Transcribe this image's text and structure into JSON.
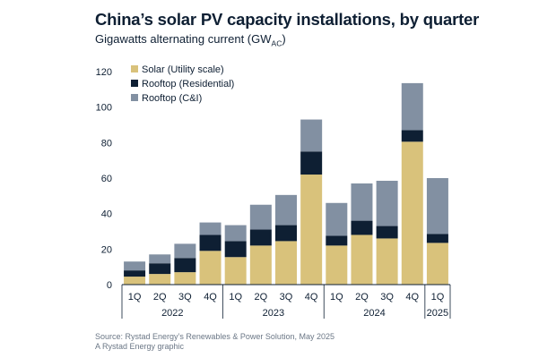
{
  "header": {
    "title": "China’s solar PV capacity installations, by quarter",
    "subtitle_main": "Gigawatts alternating current (GW",
    "subtitle_sub": "AC",
    "subtitle_end": ")"
  },
  "footer": {
    "source": "Source: Rystad Energy’s Renewables & Power Solution, May 2025",
    "credit": "A Rystad Energy graphic"
  },
  "chart_data": {
    "type": "bar",
    "stacked": true,
    "title": "China’s solar PV capacity installations, by quarter",
    "ylabel": "Gigawatts alternating current (GWAC)",
    "ylim": [
      0,
      120
    ],
    "yticks": [
      0,
      20,
      40,
      60,
      80,
      100,
      120
    ],
    "categories": [
      "1Q",
      "2Q",
      "3Q",
      "4Q",
      "1Q",
      "2Q",
      "3Q",
      "4Q",
      "1Q",
      "2Q",
      "3Q",
      "4Q",
      "1Q"
    ],
    "groups": [
      {
        "label": "2022",
        "count": 4
      },
      {
        "label": "2023",
        "count": 4
      },
      {
        "label": "2024",
        "count": 4
      },
      {
        "label": "2025",
        "count": 1
      }
    ],
    "series": [
      {
        "name": "Solar (Utility scale)",
        "color": "#d9c27b",
        "values": [
          4.5,
          6,
          7,
          19,
          15.5,
          22,
          24.5,
          62,
          22,
          28,
          26,
          80.5,
          23.5
        ]
      },
      {
        "name": "Rooftop (Residential)",
        "color": "#0e1f33",
        "values": [
          3.5,
          6,
          8,
          9,
          9,
          9,
          9,
          13,
          5.5,
          8,
          7,
          6.5,
          5
        ]
      },
      {
        "name": "Rooftop (C&I)",
        "color": "#8290a2",
        "values": [
          5,
          5,
          8,
          7,
          9,
          14,
          17,
          18,
          18.5,
          21,
          25.5,
          26.5,
          31.5
        ]
      }
    ],
    "legend_position": "top-left"
  }
}
